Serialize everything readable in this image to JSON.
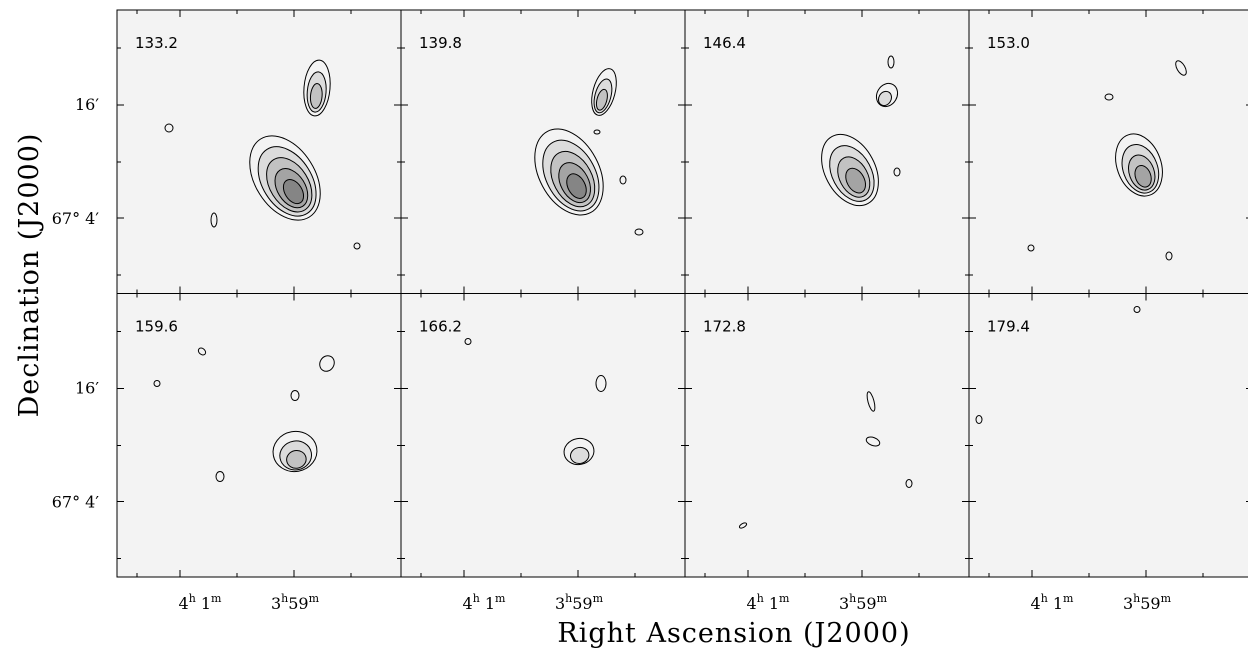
{
  "figure": {
    "x_axis_label": "Right Ascension (J2000)",
    "y_axis_label": "Declination (J2000)",
    "panels": [
      "133.2",
      "139.8",
      "146.4",
      "153.0",
      "159.6",
      "166.2",
      "172.8",
      "179.4"
    ],
    "x_tick_labels": [
      [
        "4",
        "h",
        " 1",
        "m"
      ],
      [
        "3",
        "h",
        "59",
        "m"
      ]
    ],
    "y_tick_labels": [
      "16′",
      "67° 4′"
    ]
  }
}
